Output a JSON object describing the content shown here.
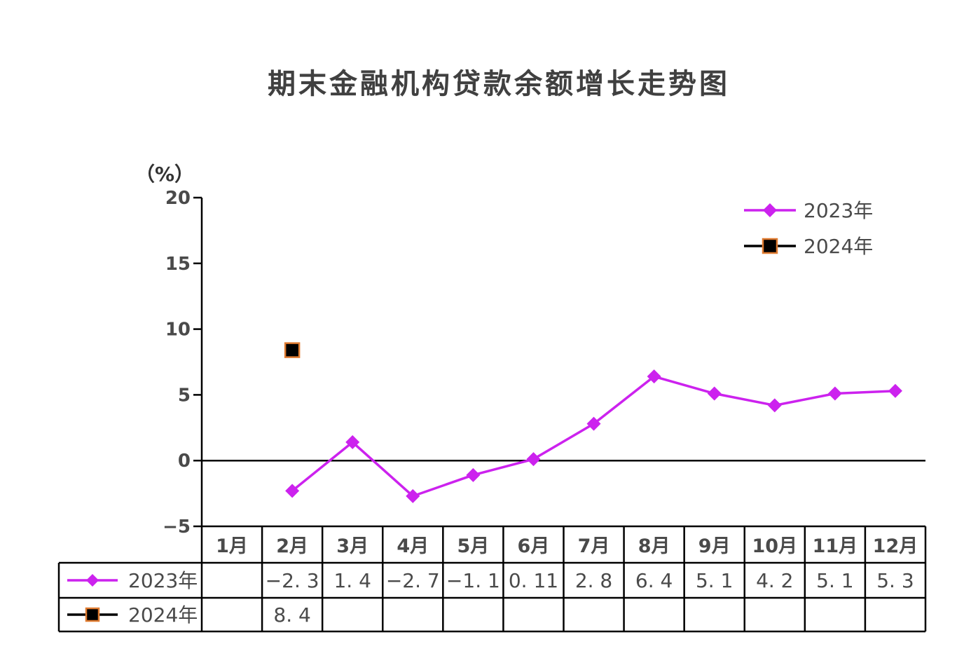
{
  "chart_data": {
    "type": "line",
    "title": "期末金融机构贷款余额增长走势图",
    "ylabel": "（%）",
    "ylim": [
      -5,
      20
    ],
    "yticks": [
      "20",
      "15",
      "10",
      "5",
      "0",
      "−5"
    ],
    "yticks_values": [
      20,
      15,
      10,
      5,
      0,
      -5
    ],
    "categories": [
      "1月",
      "2月",
      "3月",
      "4月",
      "5月",
      "6月",
      "7月",
      "8月",
      "9月",
      "10月",
      "11月",
      "12月"
    ],
    "legend_position": "top-right",
    "grid": false,
    "series": [
      {
        "name": "2023年",
        "color": "#cc22ee",
        "marker": "diamond",
        "values": [
          null,
          -2.3,
          1.4,
          -2.7,
          -1.1,
          0.11,
          2.8,
          6.4,
          5.1,
          4.2,
          5.1,
          5.3
        ],
        "labels": [
          "",
          "−2. 3",
          "1. 4",
          "−2. 7",
          "−1. 1",
          "0. 11",
          "2. 8",
          "6. 4",
          "5. 1",
          "4. 2",
          "5. 1",
          "5. 3"
        ]
      },
      {
        "name": "2024年",
        "color": "#000000",
        "edge_color": "#e07b30",
        "marker": "square",
        "values": [
          null,
          8.4,
          null,
          null,
          null,
          null,
          null,
          null,
          null,
          null,
          null,
          null
        ],
        "labels": [
          "",
          "8. 4",
          "",
          "",
          "",
          "",
          "",
          "",
          "",
          "",
          "",
          ""
        ]
      }
    ]
  }
}
